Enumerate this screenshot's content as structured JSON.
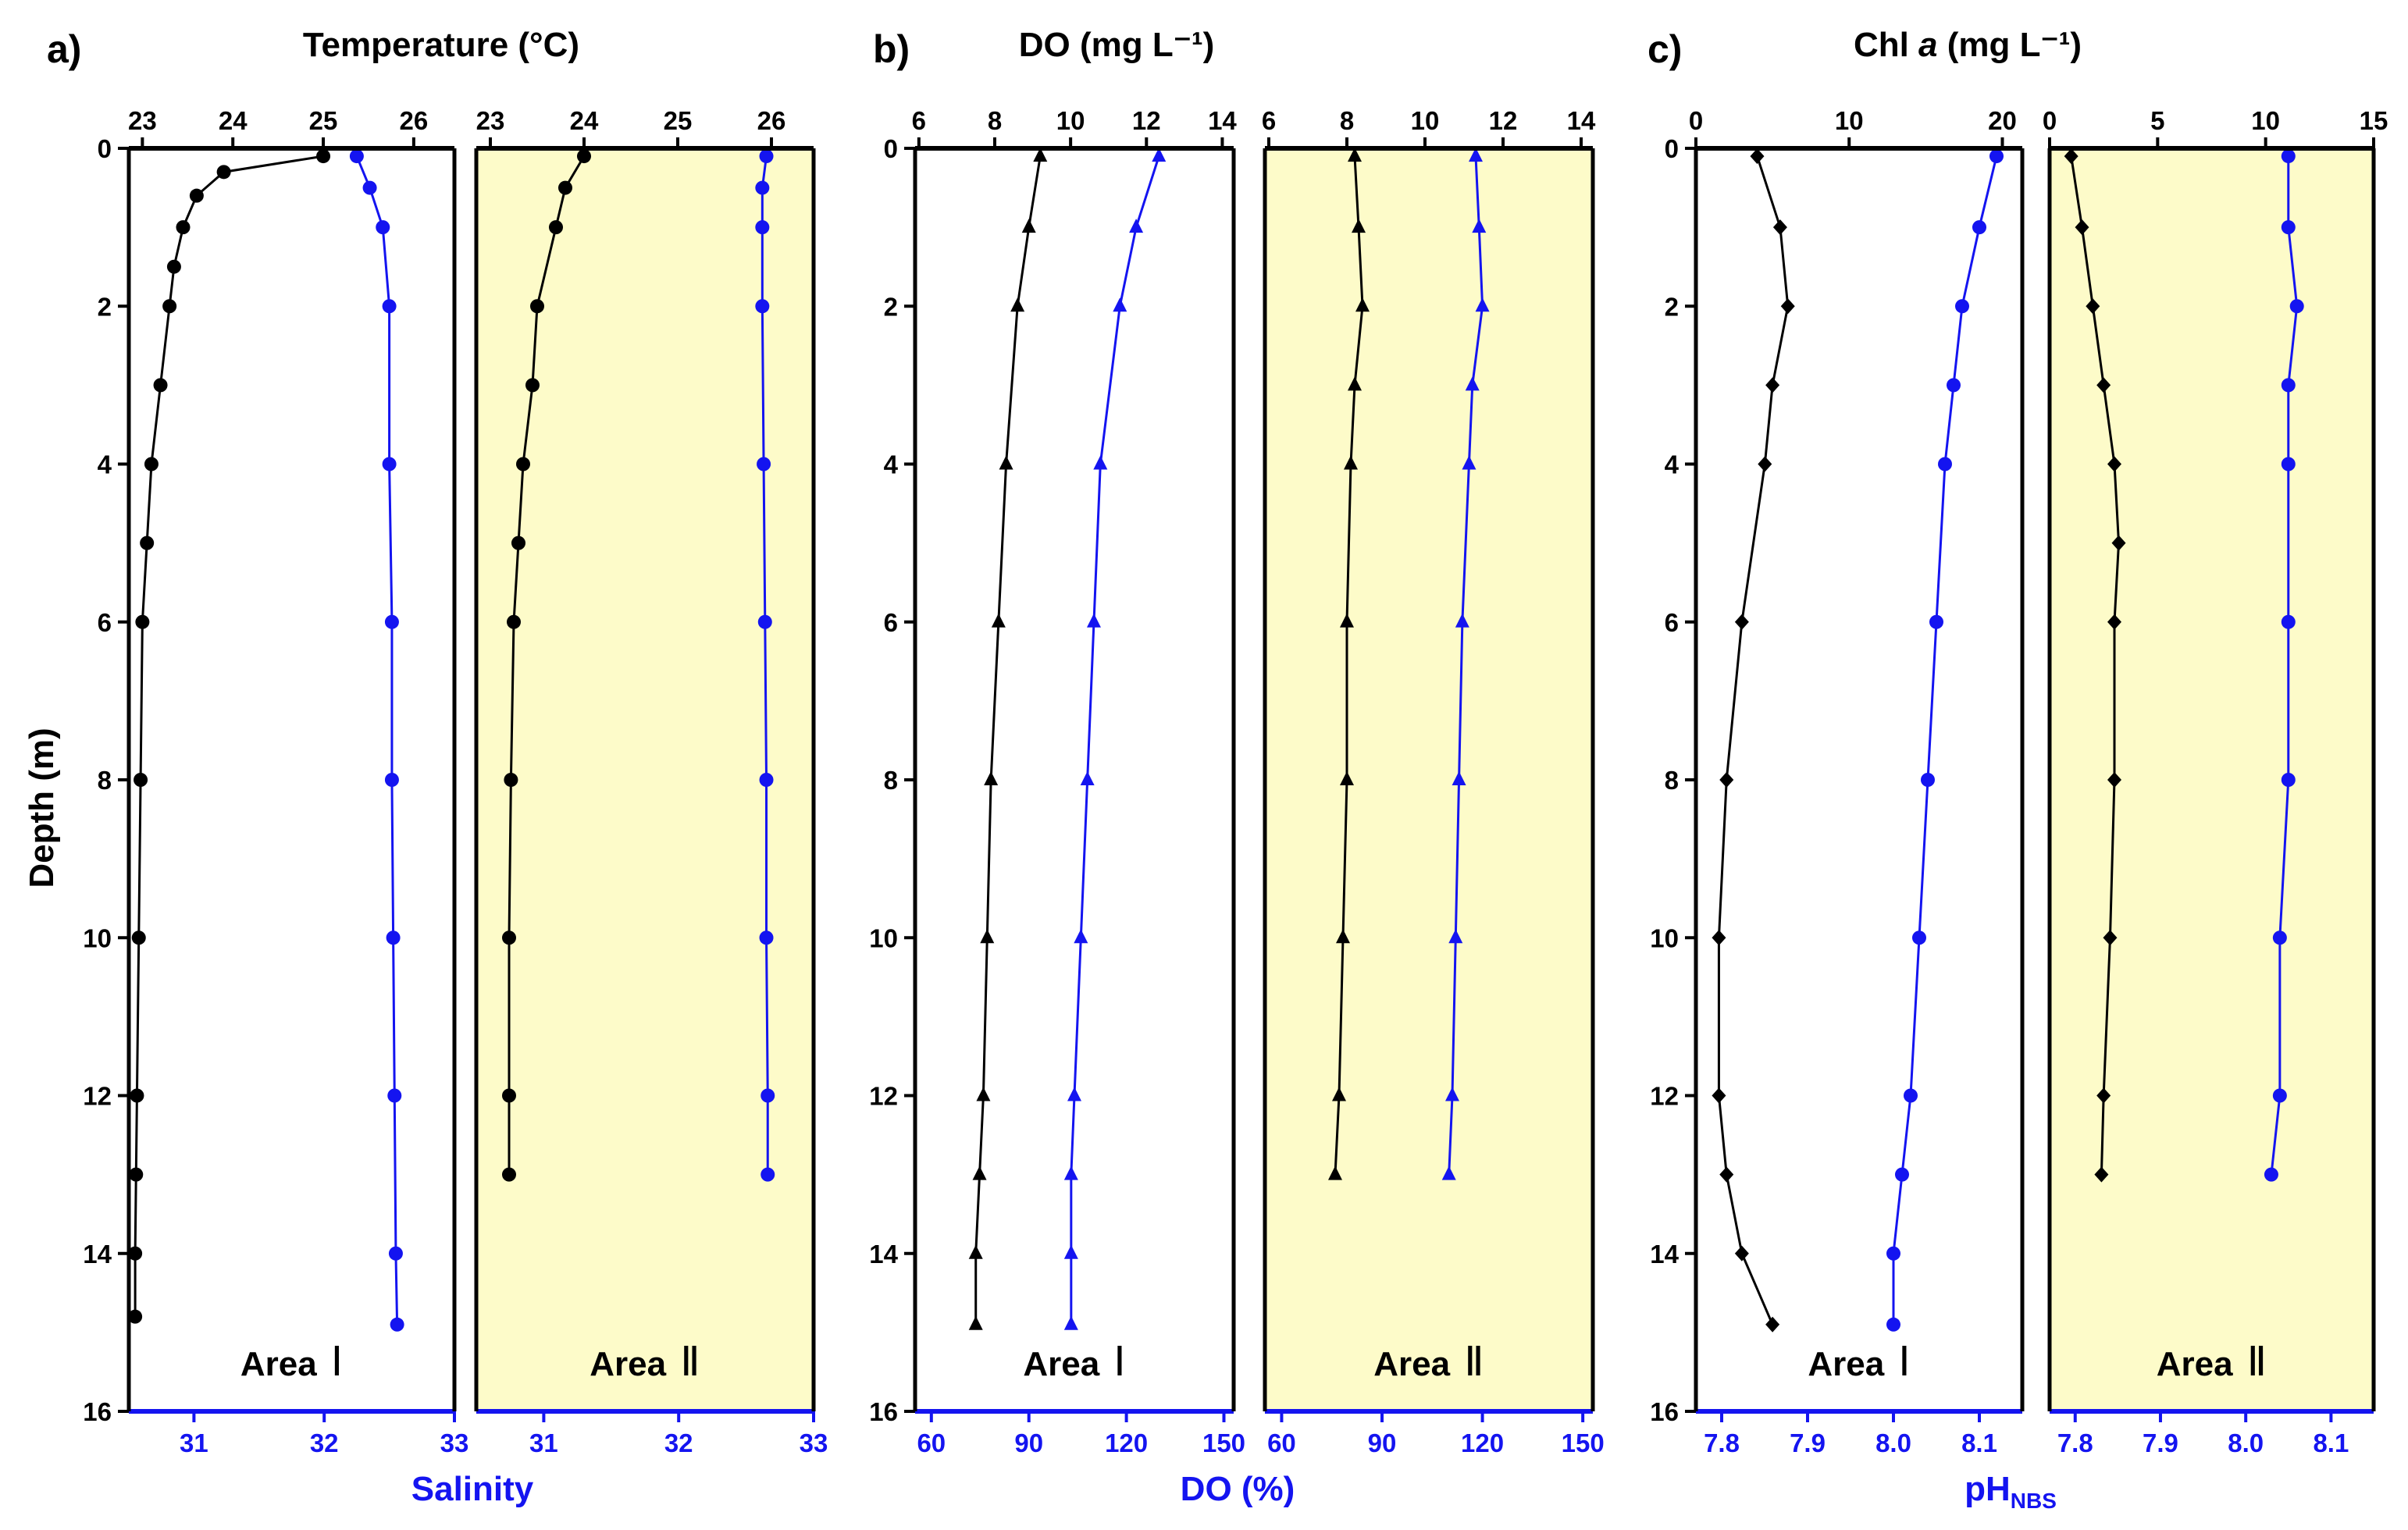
{
  "figure": {
    "colors": {
      "primary": "#000000",
      "secondary": "#1414f0",
      "shade": "#fdfbc9"
    },
    "depth_axis": {
      "label": "Depth (m)",
      "ticks": [
        "0",
        "2",
        "4",
        "6",
        "8",
        "10",
        "12",
        "14",
        "16"
      ],
      "range": [
        0,
        16
      ]
    },
    "area_labels": {
      "area1": "Area",
      "area2": "Area",
      "numeral1": "Ⅰ",
      "numeral2": "Ⅱ"
    }
  },
  "panels": [
    {
      "letter": "a)",
      "title": "Temperature (°C)",
      "bottom_label": "Salinity",
      "top_ticks": [
        "23",
        "24",
        "25",
        "26"
      ],
      "top_range": [
        22.85,
        26.45
      ],
      "bottom_ticks": [
        "31",
        "32",
        "33"
      ],
      "bottom_range": [
        30.5,
        33.0
      ],
      "top_marker": "circle",
      "bottom_marker": "circle"
    },
    {
      "letter": "b)",
      "title": "DO (mg L⁻¹)",
      "bottom_label": "DO (%)",
      "top_ticks": [
        "6",
        "8",
        "10",
        "12",
        "14"
      ],
      "top_range": [
        5.9,
        14.3
      ],
      "bottom_ticks": [
        "60",
        "90",
        "120",
        "150"
      ],
      "bottom_range": [
        55,
        153
      ],
      "top_marker": "triangle",
      "bottom_marker": "triangle"
    },
    {
      "letter": "c)",
      "title_prefix": "Chl ",
      "title_italic": "a",
      "title_suffix": " (mg L⁻¹)",
      "bottom_label_main": "pH",
      "bottom_label_sub": "NBS",
      "sub1_top_ticks": [
        "0",
        "10",
        "20"
      ],
      "sub1_top_range": [
        0,
        21.3
      ],
      "sub2_top_ticks": [
        "0",
        "5",
        "10",
        "15"
      ],
      "sub2_top_range": [
        0,
        15
      ],
      "bottom_ticks": [
        "7.8",
        "7.9",
        "8.0",
        "8.1"
      ],
      "bottom_range": [
        7.77,
        8.15
      ],
      "top_marker": "diamond",
      "bottom_marker": "circle"
    }
  ],
  "chart_data": [
    {
      "type": "line",
      "panel": "a",
      "subplot": "Area Ⅰ",
      "series": [
        {
          "name": "Temperature (°C)",
          "axis": "top",
          "depth": [
            0.1,
            0.3,
            0.6,
            1.0,
            1.5,
            2.0,
            3.0,
            4.0,
            5.0,
            6.0,
            8.0,
            10.0,
            12.0,
            13.0,
            14.0,
            14.8
          ],
          "values": [
            25.0,
            23.9,
            23.6,
            23.45,
            23.35,
            23.3,
            23.2,
            23.1,
            23.05,
            23.0,
            22.98,
            22.96,
            22.94,
            22.93,
            22.92,
            22.92
          ]
        },
        {
          "name": "Salinity",
          "axis": "bottom",
          "depth": [
            0.1,
            0.5,
            1.0,
            2.0,
            4.0,
            6.0,
            8.0,
            10.0,
            12.0,
            14.0,
            14.9
          ],
          "values": [
            32.25,
            32.35,
            32.45,
            32.5,
            32.5,
            32.52,
            32.52,
            32.53,
            32.54,
            32.55,
            32.56
          ]
        }
      ]
    },
    {
      "type": "line",
      "panel": "a",
      "subplot": "Area Ⅱ",
      "series": [
        {
          "name": "Temperature (°C)",
          "axis": "top",
          "depth": [
            0.1,
            0.5,
            1.0,
            2.0,
            3.0,
            4.0,
            5.0,
            6.0,
            8.0,
            10.0,
            12.0,
            13.0
          ],
          "values": [
            24.0,
            23.8,
            23.7,
            23.5,
            23.45,
            23.35,
            23.3,
            23.25,
            23.22,
            23.2,
            23.2,
            23.2
          ]
        },
        {
          "name": "Salinity",
          "axis": "bottom",
          "depth": [
            0.1,
            0.5,
            1.0,
            2.0,
            4.0,
            6.0,
            8.0,
            10.0,
            12.0,
            13.0
          ],
          "values": [
            32.65,
            32.62,
            32.62,
            32.62,
            32.63,
            32.64,
            32.65,
            32.65,
            32.66,
            32.66
          ]
        }
      ]
    },
    {
      "type": "line",
      "panel": "b",
      "subplot": "Area Ⅰ",
      "series": [
        {
          "name": "DO (mg L⁻¹)",
          "axis": "top",
          "depth": [
            0.1,
            1.0,
            2.0,
            4.0,
            6.0,
            8.0,
            10.0,
            12.0,
            13.0,
            14.0,
            14.9
          ],
          "values": [
            9.2,
            8.9,
            8.6,
            8.3,
            8.1,
            7.9,
            7.8,
            7.7,
            7.6,
            7.5,
            7.5
          ]
        },
        {
          "name": "DO (%)",
          "axis": "bottom",
          "depth": [
            0.1,
            1.0,
            2.0,
            4.0,
            6.0,
            8.0,
            10.0,
            12.0,
            13.0,
            14.0,
            14.9
          ],
          "values": [
            130,
            123,
            118,
            112,
            110,
            108,
            106,
            104,
            103,
            103,
            103
          ]
        }
      ]
    },
    {
      "type": "line",
      "panel": "b",
      "subplot": "Area Ⅱ",
      "series": [
        {
          "name": "DO (mg L⁻¹)",
          "axis": "top",
          "depth": [
            0.1,
            1.0,
            2.0,
            3.0,
            4.0,
            6.0,
            8.0,
            10.0,
            12.0,
            13.0
          ],
          "values": [
            8.2,
            8.3,
            8.4,
            8.2,
            8.1,
            8.0,
            8.0,
            7.9,
            7.8,
            7.7
          ]
        },
        {
          "name": "DO (%)",
          "axis": "bottom",
          "depth": [
            0.1,
            1.0,
            2.0,
            3.0,
            4.0,
            6.0,
            8.0,
            10.0,
            12.0,
            13.0
          ],
          "values": [
            118,
            119,
            120,
            117,
            116,
            114,
            113,
            112,
            111,
            110
          ]
        }
      ]
    },
    {
      "type": "line",
      "panel": "c",
      "subplot": "Area Ⅰ",
      "series": [
        {
          "name": "Chl a (mg L⁻¹)",
          "axis": "top",
          "depth": [
            0.1,
            1.0,
            2.0,
            3.0,
            4.0,
            6.0,
            8.0,
            10.0,
            12.0,
            13.0,
            14.0,
            14.9
          ],
          "values": [
            4.0,
            5.5,
            6.0,
            5.0,
            4.5,
            3.0,
            2.0,
            1.5,
            1.5,
            2.0,
            3.0,
            5.0
          ]
        },
        {
          "name": "pHNBS",
          "axis": "bottom",
          "depth": [
            0.1,
            1.0,
            2.0,
            3.0,
            4.0,
            6.0,
            8.0,
            10.0,
            12.0,
            13.0,
            14.0,
            14.9
          ],
          "values": [
            8.12,
            8.1,
            8.08,
            8.07,
            8.06,
            8.05,
            8.04,
            8.03,
            8.02,
            8.01,
            8.0,
            8.0
          ]
        }
      ]
    },
    {
      "type": "line",
      "panel": "c",
      "subplot": "Area Ⅱ",
      "series": [
        {
          "name": "Chl a (mg L⁻¹)",
          "axis": "top",
          "depth": [
            0.1,
            1.0,
            2.0,
            3.0,
            4.0,
            5.0,
            6.0,
            8.0,
            10.0,
            12.0,
            13.0
          ],
          "values": [
            1.0,
            1.5,
            2.0,
            2.5,
            3.0,
            3.2,
            3.0,
            3.0,
            2.8,
            2.5,
            2.4
          ]
        },
        {
          "name": "pHNBS",
          "axis": "bottom",
          "depth": [
            0.1,
            1.0,
            2.0,
            3.0,
            4.0,
            6.0,
            8.0,
            10.0,
            12.0,
            13.0
          ],
          "values": [
            8.05,
            8.05,
            8.06,
            8.05,
            8.05,
            8.05,
            8.05,
            8.04,
            8.04,
            8.03
          ]
        }
      ]
    }
  ]
}
